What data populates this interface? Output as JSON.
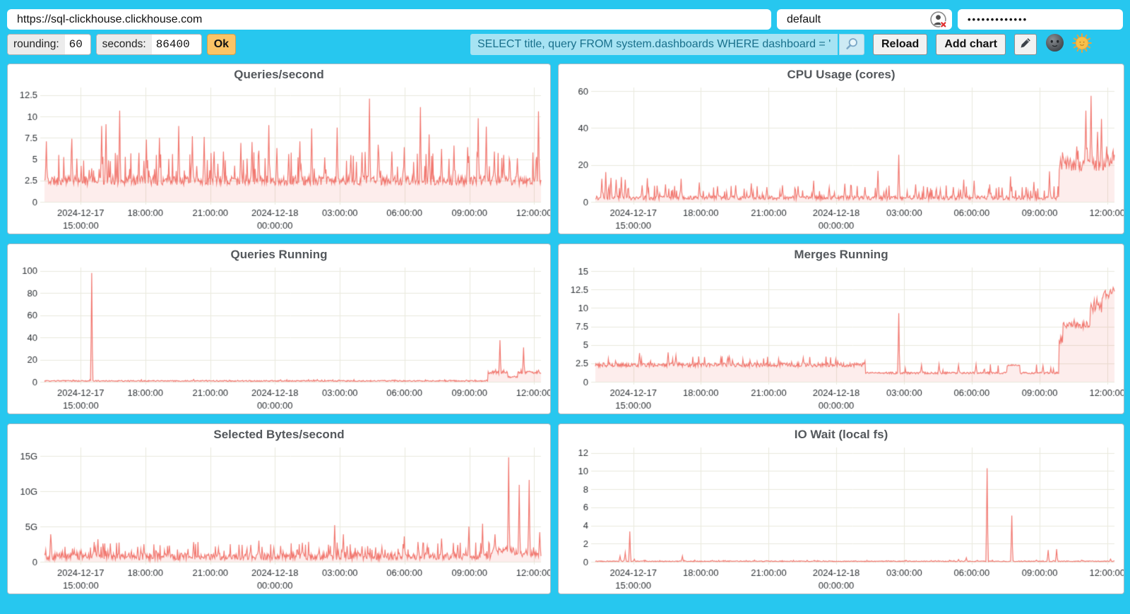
{
  "colors": {
    "page_bg": "#27c7ef",
    "line": "#f1766e",
    "fill_opacity": 0.13,
    "grid": "#e9e9dc",
    "axis_text": "#2b2f33",
    "title_text": "#54585c"
  },
  "topbar": {
    "url": "https://sql-clickhouse.clickhouse.com",
    "user": "default",
    "password_masked": "•••••••••••••",
    "user_icon": "user-auth-error-icon"
  },
  "toolbar": {
    "rounding_label": "rounding:",
    "rounding_value": "60",
    "seconds_label": "seconds:",
    "seconds_value": "86400",
    "ok_label": "Ok",
    "query_value": "SELECT title, query FROM system.dashboards WHERE dashboard = '",
    "search_icon": "magnifier-icon",
    "reload_label": "Reload",
    "add_chart_label": "Add chart",
    "edit_icon": "pencil-icon",
    "dark_icon": "moon-face-icon",
    "light_icon": "sun-face-icon"
  },
  "chart_data": [
    {
      "type": "line",
      "title": "Queries/second",
      "seed": 11,
      "ymax": 13.4,
      "y_ticks": [
        0,
        2.5,
        5,
        7.5,
        10,
        12.5
      ],
      "y_tick_labels": [
        "0",
        "2.5",
        "5",
        "7.5",
        "10",
        "12.5"
      ],
      "x_ticks": [
        {
          "f": 0.073,
          "l1": "2024-12-17",
          "l2": "15:00:00"
        },
        {
          "f": 0.203,
          "l1": "18:00:00"
        },
        {
          "f": 0.334,
          "l1": "21:00:00"
        },
        {
          "f": 0.464,
          "l1": "2024-12-18",
          "l2": "00:00:00"
        },
        {
          "f": 0.595,
          "l1": "03:00:00"
        },
        {
          "f": 0.725,
          "l1": "06:00:00"
        },
        {
          "f": 0.856,
          "l1": "09:00:00"
        },
        {
          "f": 0.986,
          "l1": "12:00:00"
        }
      ],
      "segments": [
        {
          "x0": 0,
          "x1": 1,
          "base": 2.5,
          "noise": 0.55,
          "spike_p": 0.1,
          "spike_h": 2.6
        }
      ],
      "spikes": [
        [
          0.004,
          7.1
        ],
        [
          0.055,
          7.4
        ],
        [
          0.115,
          8.9
        ],
        [
          0.124,
          9.1
        ],
        [
          0.152,
          10.7
        ],
        [
          0.205,
          7.3
        ],
        [
          0.232,
          7.5
        ],
        [
          0.27,
          8.9
        ],
        [
          0.298,
          7.7
        ],
        [
          0.322,
          7.6
        ],
        [
          0.342,
          5.9
        ],
        [
          0.36,
          5.9
        ],
        [
          0.395,
          6.9
        ],
        [
          0.418,
          7.0
        ],
        [
          0.432,
          6.0
        ],
        [
          0.452,
          9.0
        ],
        [
          0.468,
          6.3
        ],
        [
          0.492,
          5.6
        ],
        [
          0.515,
          7.1
        ],
        [
          0.538,
          8.6
        ],
        [
          0.565,
          5.2
        ],
        [
          0.59,
          8.7
        ],
        [
          0.617,
          5.5
        ],
        [
          0.64,
          5.8
        ],
        [
          0.655,
          12.1
        ],
        [
          0.672,
          6.7
        ],
        [
          0.7,
          5.9
        ],
        [
          0.725,
          6.4
        ],
        [
          0.757,
          11.1
        ],
        [
          0.775,
          7.9
        ],
        [
          0.8,
          6.2
        ],
        [
          0.825,
          6.6
        ],
        [
          0.852,
          6.4
        ],
        [
          0.874,
          9.8
        ],
        [
          0.89,
          8.8
        ],
        [
          0.906,
          5.9
        ],
        [
          0.925,
          5.5
        ],
        [
          0.952,
          5.1
        ],
        [
          0.995,
          10.6
        ]
      ]
    },
    {
      "type": "line",
      "title": "CPU Usage (cores)",
      "seed": 22,
      "ymax": 62,
      "y_ticks": [
        0,
        20,
        40,
        60
      ],
      "y_tick_labels": [
        "0",
        "20",
        "40",
        "60"
      ],
      "x_ticks": [
        {
          "f": 0.073,
          "l1": "2024-12-17",
          "l2": "15:00:00"
        },
        {
          "f": 0.203,
          "l1": "18:00:00"
        },
        {
          "f": 0.334,
          "l1": "21:00:00"
        },
        {
          "f": 0.464,
          "l1": "2024-12-18",
          "l2": "00:00:00"
        },
        {
          "f": 0.595,
          "l1": "03:00:00"
        },
        {
          "f": 0.725,
          "l1": "06:00:00"
        },
        {
          "f": 0.856,
          "l1": "09:00:00"
        },
        {
          "f": 0.986,
          "l1": "12:00:00"
        }
      ],
      "segments": [
        {
          "x0": 0,
          "x1": 0.893,
          "base": 2.2,
          "noise": 1.1,
          "spike_p": 0.1,
          "spike_h": 5.5
        },
        {
          "x0": 0.893,
          "x1": 1,
          "base": 20,
          "noise": 3.2,
          "spike_p": 0.12,
          "spike_h": 7
        }
      ],
      "spikes": [
        [
          0.012,
          12.5
        ],
        [
          0.02,
          16.2
        ],
        [
          0.03,
          13
        ],
        [
          0.04,
          12
        ],
        [
          0.05,
          13.5
        ],
        [
          0.058,
          12
        ],
        [
          0.09,
          9
        ],
        [
          0.1,
          12.8
        ],
        [
          0.135,
          9.5
        ],
        [
          0.165,
          12.5
        ],
        [
          0.2,
          10.5
        ],
        [
          0.235,
          8.5
        ],
        [
          0.27,
          9.0
        ],
        [
          0.3,
          10
        ],
        [
          0.33,
          8
        ],
        [
          0.36,
          9
        ],
        [
          0.39,
          8.5
        ],
        [
          0.42,
          11.5
        ],
        [
          0.45,
          8
        ],
        [
          0.48,
          9.8
        ],
        [
          0.52,
          8
        ],
        [
          0.545,
          16.8
        ],
        [
          0.585,
          25.5
        ],
        [
          0.617,
          9.5
        ],
        [
          0.64,
          8
        ],
        [
          0.665,
          7
        ],
        [
          0.69,
          8
        ],
        [
          0.71,
          12
        ],
        [
          0.73,
          11.5
        ],
        [
          0.76,
          9.5
        ],
        [
          0.8,
          13.8
        ],
        [
          0.83,
          8
        ],
        [
          0.845,
          10.8
        ],
        [
          0.875,
          16.5
        ],
        [
          0.91,
          24
        ],
        [
          0.928,
          30
        ],
        [
          0.945,
          49.5
        ],
        [
          0.955,
          57.5
        ],
        [
          0.968,
          38
        ],
        [
          0.975,
          45
        ],
        [
          0.985,
          30
        ],
        [
          0.997,
          28
        ]
      ]
    },
    {
      "type": "line",
      "title": "Queries Running",
      "seed": 33,
      "ymax": 103,
      "y_ticks": [
        0,
        20,
        40,
        60,
        80,
        100
      ],
      "y_tick_labels": [
        "0",
        "20",
        "40",
        "60",
        "80",
        "100"
      ],
      "x_ticks": [
        {
          "f": 0.073,
          "l1": "2024-12-17",
          "l2": "15:00:00"
        },
        {
          "f": 0.203,
          "l1": "18:00:00"
        },
        {
          "f": 0.334,
          "l1": "21:00:00"
        },
        {
          "f": 0.464,
          "l1": "2024-12-18",
          "l2": "00:00:00"
        },
        {
          "f": 0.595,
          "l1": "03:00:00"
        },
        {
          "f": 0.725,
          "l1": "06:00:00"
        },
        {
          "f": 0.856,
          "l1": "09:00:00"
        },
        {
          "f": 0.986,
          "l1": "12:00:00"
        }
      ],
      "segments": [
        {
          "x0": 0,
          "x1": 0.893,
          "base": 0.8,
          "noise": 0.5,
          "spike_p": 0.05,
          "spike_h": 0.9
        },
        {
          "x0": 0.893,
          "x1": 0.933,
          "base": 8.5,
          "noise": 1.4,
          "spike_p": 0.1,
          "spike_h": 2
        },
        {
          "x0": 0.933,
          "x1": 0.953,
          "base": 4.5,
          "noise": 0.8,
          "spike_p": 0.05,
          "spike_h": 1
        },
        {
          "x0": 0.953,
          "x1": 1,
          "base": 8.5,
          "noise": 1.2,
          "spike_p": 0.1,
          "spike_h": 2
        }
      ],
      "spikes": [
        [
          0.095,
          98
        ],
        [
          0.3,
          2.2
        ],
        [
          0.55,
          2.0
        ],
        [
          0.918,
          37.5
        ],
        [
          0.965,
          31
        ],
        [
          0.995,
          10.5
        ]
      ]
    },
    {
      "type": "line",
      "title": "Merges Running",
      "seed": 44,
      "ymax": 15.5,
      "y_ticks": [
        0,
        2.5,
        5,
        7.5,
        10,
        12.5,
        15
      ],
      "y_tick_labels": [
        "0",
        "2.5",
        "5",
        "7.5",
        "10",
        "12.5",
        "15"
      ],
      "x_ticks": [
        {
          "f": 0.073,
          "l1": "2024-12-17",
          "l2": "15:00:00"
        },
        {
          "f": 0.203,
          "l1": "18:00:00"
        },
        {
          "f": 0.334,
          "l1": "21:00:00"
        },
        {
          "f": 0.464,
          "l1": "2024-12-18",
          "l2": "00:00:00"
        },
        {
          "f": 0.595,
          "l1": "03:00:00"
        },
        {
          "f": 0.725,
          "l1": "06:00:00"
        },
        {
          "f": 0.856,
          "l1": "09:00:00"
        },
        {
          "f": 0.986,
          "l1": "12:00:00"
        }
      ],
      "segments": [
        {
          "x0": 0,
          "x1": 0.52,
          "base": 2.3,
          "noise": 0.28,
          "spike_p": 0.07,
          "spike_h": 0.9
        },
        {
          "x0": 0.52,
          "x1": 0.793,
          "base": 1.2,
          "noise": 0.14,
          "spike_p": 0.06,
          "spike_h": 0.9
        },
        {
          "x0": 0.793,
          "x1": 0.818,
          "base": 2.25,
          "noise": 0.1,
          "spike_p": 0,
          "spike_h": 0
        },
        {
          "x0": 0.818,
          "x1": 0.893,
          "base": 1.2,
          "noise": 0.14,
          "spike_p": 0.06,
          "spike_h": 0.9
        },
        {
          "x0": 0.893,
          "x1": 0.9,
          "base": 5.6,
          "noise": 0.5,
          "spike_p": 0,
          "spike_h": 0
        },
        {
          "x0": 0.9,
          "x1": 0.953,
          "base": 7.7,
          "noise": 0.45,
          "spike_p": 0.06,
          "spike_h": 0.6
        },
        {
          "x0": 0.953,
          "x1": 0.975,
          "base": 10.2,
          "noise": 0.8,
          "spike_p": 0.08,
          "spike_h": 0.9
        },
        {
          "x0": 0.975,
          "x1": 1,
          "base": 11.9,
          "noise": 0.7,
          "spike_p": 0.08,
          "spike_h": 0.8
        }
      ],
      "spikes": [
        [
          0.085,
          3.9
        ],
        [
          0.14,
          4.0
        ],
        [
          0.155,
          3.6
        ],
        [
          0.255,
          3.3
        ],
        [
          0.4,
          3.3
        ],
        [
          0.585,
          9.3
        ],
        [
          0.628,
          2.3
        ],
        [
          0.662,
          2.4
        ],
        [
          0.7,
          2.3
        ],
        [
          0.733,
          2.4
        ],
        [
          0.862,
          2.2
        ],
        [
          0.997,
          12.8
        ]
      ]
    },
    {
      "type": "line",
      "title": "Selected Bytes/second",
      "seed": 55,
      "ymax": 16.2,
      "y_ticks": [
        0,
        5,
        10,
        15
      ],
      "y_tick_labels": [
        "0",
        "5G",
        "10G",
        "15G"
      ],
      "x_ticks": [
        {
          "f": 0.073,
          "l1": "2024-12-17",
          "l2": "15:00:00"
        },
        {
          "f": 0.203,
          "l1": "18:00:00"
        },
        {
          "f": 0.334,
          "l1": "21:00:00"
        },
        {
          "f": 0.464,
          "l1": "2024-12-18",
          "l2": "00:00:00"
        },
        {
          "f": 0.595,
          "l1": "03:00:00"
        },
        {
          "f": 0.725,
          "l1": "06:00:00"
        },
        {
          "f": 0.856,
          "l1": "09:00:00"
        },
        {
          "f": 0.986,
          "l1": "12:00:00"
        }
      ],
      "segments": [
        {
          "x0": 0,
          "x1": 0.9,
          "base": 0.75,
          "noise": 0.5,
          "spike_p": 0.12,
          "spike_h": 1.6
        },
        {
          "x0": 0.9,
          "x1": 0.945,
          "base": 1.6,
          "noise": 0.5,
          "spike_p": 0.1,
          "spike_h": 0.9
        },
        {
          "x0": 0.945,
          "x1": 1,
          "base": 1.1,
          "noise": 0.4,
          "spike_p": 0.1,
          "spike_h": 0.8
        }
      ],
      "spikes": [
        [
          0.012,
          3.9
        ],
        [
          0.1,
          2.8
        ],
        [
          0.108,
          3.2
        ],
        [
          0.2,
          2.5
        ],
        [
          0.252,
          2.3
        ],
        [
          0.3,
          2.8
        ],
        [
          0.35,
          2.0
        ],
        [
          0.415,
          2.4
        ],
        [
          0.432,
          3.0
        ],
        [
          0.462,
          2.0
        ],
        [
          0.52,
          2.7
        ],
        [
          0.553,
          1.8
        ],
        [
          0.585,
          5.2
        ],
        [
          0.602,
          3.9
        ],
        [
          0.64,
          2.2
        ],
        [
          0.68,
          2.1
        ],
        [
          0.725,
          3.6
        ],
        [
          0.762,
          2.1
        ],
        [
          0.8,
          3.3
        ],
        [
          0.832,
          2.4
        ],
        [
          0.855,
          5.0
        ],
        [
          0.882,
          5.4
        ],
        [
          0.908,
          3.9
        ],
        [
          0.935,
          14.8
        ],
        [
          0.956,
          10.9
        ],
        [
          0.976,
          11.6
        ],
        [
          0.997,
          4.2
        ]
      ]
    },
    {
      "type": "line",
      "title": "IO Wait (local fs)",
      "seed": 66,
      "ymax": 12.6,
      "y_ticks": [
        0,
        2,
        4,
        6,
        8,
        10,
        12
      ],
      "y_tick_labels": [
        "0",
        "2",
        "4",
        "6",
        "8",
        "10",
        "12"
      ],
      "x_ticks": [
        {
          "f": 0.073,
          "l1": "2024-12-17",
          "l2": "15:00:00"
        },
        {
          "f": 0.203,
          "l1": "18:00:00"
        },
        {
          "f": 0.334,
          "l1": "21:00:00"
        },
        {
          "f": 0.464,
          "l1": "2024-12-18",
          "l2": "00:00:00"
        },
        {
          "f": 0.595,
          "l1": "03:00:00"
        },
        {
          "f": 0.725,
          "l1": "06:00:00"
        },
        {
          "f": 0.856,
          "l1": "09:00:00"
        },
        {
          "f": 0.986,
          "l1": "12:00:00"
        }
      ],
      "segments": [
        {
          "x0": 0,
          "x1": 1,
          "base": 0.05,
          "noise": 0.05,
          "spike_p": 0.04,
          "spike_h": 0.1
        }
      ],
      "spikes": [
        [
          0.048,
          0.65
        ],
        [
          0.058,
          1.05
        ],
        [
          0.066,
          3.35
        ],
        [
          0.075,
          0.3
        ],
        [
          0.168,
          0.65
        ],
        [
          0.225,
          0.15
        ],
        [
          0.33,
          0.12
        ],
        [
          0.42,
          0.1
        ],
        [
          0.5,
          0.1
        ],
        [
          0.565,
          0.12
        ],
        [
          0.6,
          0.1
        ],
        [
          0.655,
          0.12
        ],
        [
          0.7,
          0.25
        ],
        [
          0.715,
          0.45
        ],
        [
          0.755,
          10.3
        ],
        [
          0.802,
          5.1
        ],
        [
          0.85,
          0.18
        ],
        [
          0.872,
          1.3
        ],
        [
          0.888,
          1.4
        ],
        [
          0.94,
          0.12
        ],
        [
          0.993,
          0.3
        ]
      ]
    }
  ]
}
